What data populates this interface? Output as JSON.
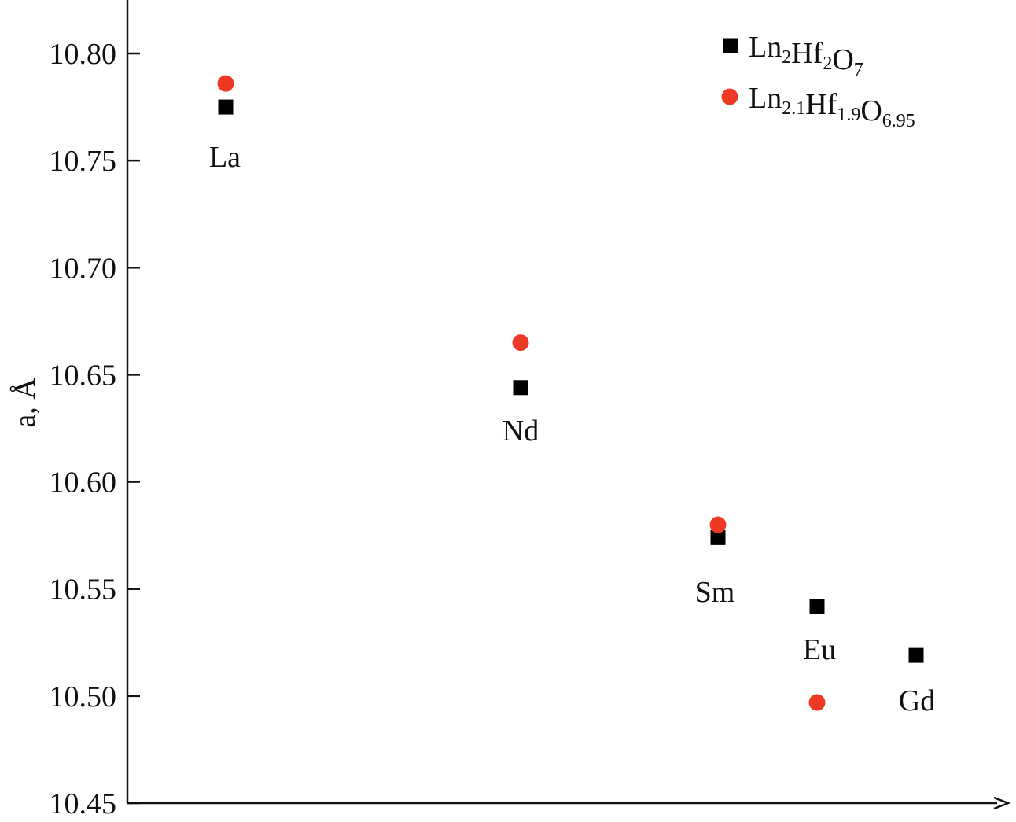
{
  "chart_data": {
    "type": "scatter",
    "title": "",
    "xlabel": "",
    "ylabel": "a, Å",
    "ylim": [
      10.45,
      10.82
    ],
    "yticks": [
      "10.45",
      "10.50",
      "10.55",
      "10.60",
      "10.65",
      "10.70",
      "10.75",
      "10.80"
    ],
    "grid": false,
    "legend_position": "top-right",
    "categories": [
      "La",
      "Nd",
      "Sm",
      "Eu",
      "Gd"
    ],
    "series": [
      {
        "name": "Ln2Hf2O7",
        "legend_parts": [
          [
            "Ln",
            ""
          ],
          [
            "2",
            "sub"
          ],
          [
            "Hf",
            ""
          ],
          [
            "2",
            "sub"
          ],
          [
            "O",
            ""
          ],
          [
            "7",
            "sub"
          ]
        ],
        "marker": "square",
        "color": "#000000",
        "values": [
          10.775,
          10.644,
          10.574,
          10.542,
          10.519
        ]
      },
      {
        "name": "Ln2.1Hf1.9O6.95",
        "legend_parts": [
          [
            "Ln",
            ""
          ],
          [
            "2.1",
            "sub"
          ],
          [
            "Hf",
            ""
          ],
          [
            "1.9",
            "sub"
          ],
          [
            "O",
            ""
          ],
          [
            "6.95",
            "sub"
          ]
        ],
        "marker": "circle",
        "color": "#ee3a24",
        "values": [
          10.786,
          10.665,
          10.58,
          10.497,
          null
        ]
      }
    ]
  }
}
